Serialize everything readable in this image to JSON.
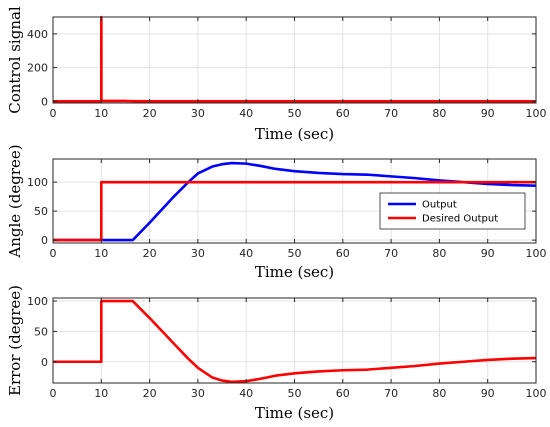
{
  "chart_data": [
    {
      "type": "line",
      "xlabel": "Time (sec)",
      "ylabel": "Control signal",
      "xlim": [
        0,
        100
      ],
      "ylim": [
        -10,
        500
      ],
      "xticks": [
        0,
        10,
        20,
        30,
        40,
        50,
        60,
        70,
        80,
        90,
        100
      ],
      "yticks": [
        0,
        200,
        400
      ],
      "grid": true,
      "series": [
        {
          "color": "#ff0000",
          "points": [
            [
              0,
              0
            ],
            [
              10,
              0
            ],
            [
              10,
              500
            ],
            [
              10.01,
              500
            ],
            [
              10.02,
              2
            ],
            [
              15,
              2
            ],
            [
              17,
              1
            ],
            [
              20,
              0
            ],
            [
              100,
              0
            ]
          ]
        }
      ]
    },
    {
      "type": "line",
      "xlabel": "Time (sec)",
      "ylabel": "Angle (degree)",
      "xlim": [
        0,
        100
      ],
      "ylim": [
        -5,
        140
      ],
      "xticks": [
        0,
        10,
        20,
        30,
        40,
        50,
        60,
        70,
        80,
        90,
        100
      ],
      "yticks": [
        0,
        50,
        100
      ],
      "grid": true,
      "legend_position": "right",
      "series": [
        {
          "name": "Output",
          "color": "#0000ff",
          "points": [
            [
              0,
              0
            ],
            [
              10,
              0
            ],
            [
              16.5,
              0
            ],
            [
              20,
              30
            ],
            [
              25,
              75
            ],
            [
              28,
              100
            ],
            [
              30,
              115
            ],
            [
              33,
              127
            ],
            [
              35,
              131
            ],
            [
              37,
              133
            ],
            [
              40,
              132
            ],
            [
              43,
              128
            ],
            [
              46,
              123
            ],
            [
              50,
              119
            ],
            [
              55,
              116
            ],
            [
              60,
              114
            ],
            [
              65,
              113
            ],
            [
              70,
              110
            ],
            [
              75,
              107
            ],
            [
              80,
              103
            ],
            [
              85,
              100
            ],
            [
              90,
              97
            ],
            [
              95,
              95
            ],
            [
              100,
              94
            ]
          ]
        },
        {
          "name": "Desired Output",
          "color": "#ff0000",
          "points": [
            [
              0,
              0
            ],
            [
              10,
              0
            ],
            [
              10,
              100
            ],
            [
              100,
              100
            ]
          ]
        }
      ]
    },
    {
      "type": "line",
      "xlabel": "Time (sec)",
      "ylabel": "Error (degree)",
      "xlim": [
        0,
        100
      ],
      "ylim": [
        -35,
        105
      ],
      "xticks": [
        0,
        10,
        20,
        30,
        40,
        50,
        60,
        70,
        80,
        90,
        100
      ],
      "yticks": [
        0,
        50,
        100
      ],
      "grid": true,
      "series": [
        {
          "color": "#ff0000",
          "points": [
            [
              0,
              0
            ],
            [
              10,
              0
            ],
            [
              10,
              100
            ],
            [
              16.5,
              100
            ],
            [
              20,
              72
            ],
            [
              25,
              30
            ],
            [
              28,
              5
            ],
            [
              30,
              -10
            ],
            [
              33,
              -26
            ],
            [
              35,
              -31
            ],
            [
              37,
              -33
            ],
            [
              40,
              -32
            ],
            [
              43,
              -28
            ],
            [
              46,
              -23
            ],
            [
              50,
              -19
            ],
            [
              55,
              -16
            ],
            [
              60,
              -14
            ],
            [
              65,
              -13
            ],
            [
              70,
              -10
            ],
            [
              75,
              -7
            ],
            [
              80,
              -3
            ],
            [
              85,
              0
            ],
            [
              90,
              3
            ],
            [
              95,
              5
            ],
            [
              100,
              6
            ]
          ]
        }
      ]
    }
  ]
}
